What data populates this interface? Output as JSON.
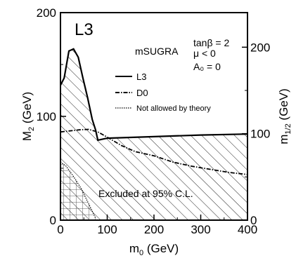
{
  "chart_data": {
    "type": "line",
    "title": "",
    "experiment_label": "L3",
    "xlabel": "m",
    "xlabel_sub": "0",
    "xlabel_unit": " (GeV)",
    "ylabel": "M",
    "ylabel_sub": "2",
    "ylabel_unit": " (GeV)",
    "y2label": "m",
    "y2label_sub": "1/2",
    "y2label_unit": " (GeV)",
    "xlim": [
      0,
      400
    ],
    "ylim": [
      0,
      200
    ],
    "y2lim": [
      0,
      240
    ],
    "x_ticks": [
      "0",
      "100",
      "200",
      "300",
      "400"
    ],
    "x_tick_values": [
      0,
      100,
      200,
      300,
      400
    ],
    "y_ticks": [
      "0",
      "100",
      "200"
    ],
    "y_tick_values": [
      0,
      100,
      200
    ],
    "y2_ticks": [
      "0",
      "100",
      "200"
    ],
    "y2_tick_values": [
      0,
      100,
      200
    ],
    "grid": false,
    "model_text": "mSUGRA",
    "params": [
      "tanβ = 2",
      "μ < 0",
      "A₀ = 0"
    ],
    "legend": {
      "placement": "center-right",
      "entries": [
        {
          "label": "L3",
          "style": "solid"
        },
        {
          "label": "D0",
          "style": "dashdot"
        },
        {
          "label": "Not allowed by theory",
          "style": "dotted"
        }
      ]
    },
    "annotation": "Excluded at 95% C.L.",
    "series": [
      {
        "label": "L3",
        "x": [
          0,
          8,
          18,
          28,
          38,
          48,
          58,
          68,
          75,
          80,
          100,
          200,
          300,
          400
        ],
        "y": [
          130,
          137,
          163,
          165,
          157,
          137,
          118,
          97,
          87,
          77,
          79,
          80.5,
          82,
          83
        ]
      },
      {
        "label": "D0",
        "x": [
          0,
          20,
          40,
          60,
          80,
          100,
          130,
          160,
          200,
          240,
          280,
          320,
          360,
          400
        ],
        "y": [
          85,
          86,
          87,
          87.5,
          85,
          80,
          72,
          66,
          62,
          56,
          52,
          49,
          46,
          44
        ]
      },
      {
        "label": "Not allowed by theory",
        "x": [
          0,
          12,
          28,
          45,
          60,
          75
        ],
        "y": [
          56,
          52,
          42,
          30,
          16,
          2
        ]
      }
    ]
  }
}
